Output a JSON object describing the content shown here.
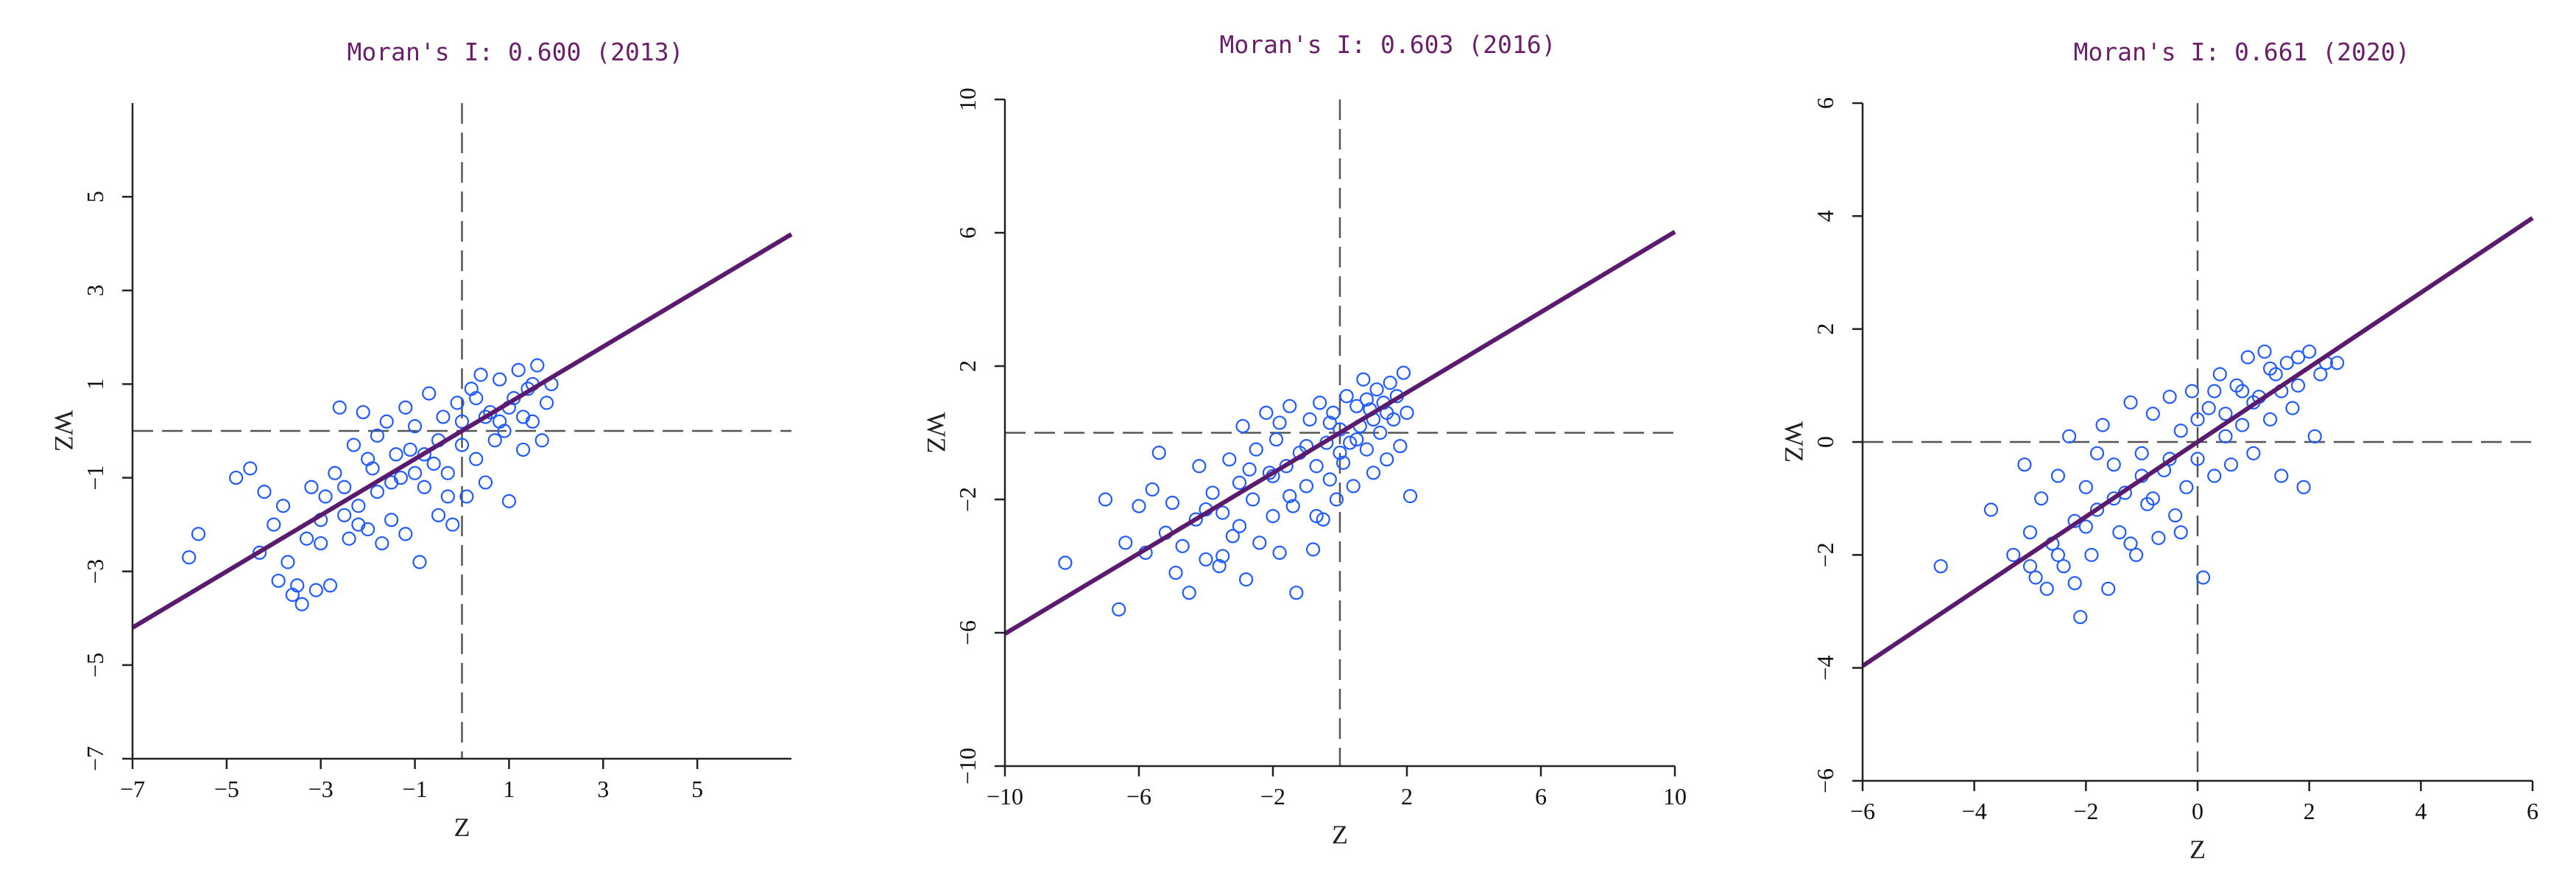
{
  "chart_data": [
    {
      "type": "scatter",
      "title": "Moran's I: 0.600 (2013)",
      "morans_i": 0.6,
      "year": 2013,
      "xlabel": "Z",
      "ylabel": "WZ",
      "xlim": [
        -7,
        7
      ],
      "ylim": [
        -7,
        7
      ],
      "xticks": [
        -7,
        -5,
        -3,
        -1,
        1,
        3,
        5
      ],
      "yticks": [
        -7,
        -5,
        -3,
        -1,
        1,
        3,
        5
      ],
      "fit": {
        "slope": 0.6,
        "intercept": 0
      },
      "reference_lines": {
        "x": 0,
        "y": 0
      },
      "series": [
        {
          "marker": "open-circle",
          "color": "#1f5bff",
          "points": [
            [
              -5.8,
              -2.7
            ],
            [
              -5.6,
              -2.2
            ],
            [
              -4.8,
              -1.0
            ],
            [
              -4.5,
              -0.8
            ],
            [
              -4.3,
              -2.6
            ],
            [
              -4.2,
              -1.3
            ],
            [
              -4.0,
              -2.0
            ],
            [
              -3.9,
              -3.2
            ],
            [
              -3.8,
              -1.6
            ],
            [
              -3.7,
              -2.8
            ],
            [
              -3.6,
              -3.5
            ],
            [
              -3.5,
              -3.3
            ],
            [
              -3.4,
              -3.7
            ],
            [
              -3.3,
              -2.3
            ],
            [
              -3.2,
              -1.2
            ],
            [
              -3.1,
              -3.4
            ],
            [
              -3.0,
              -2.4
            ],
            [
              -2.9,
              -1.4
            ],
            [
              -2.8,
              -3.3
            ],
            [
              -2.7,
              -0.9
            ],
            [
              -2.6,
              0.5
            ],
            [
              -2.5,
              -1.8
            ],
            [
              -2.4,
              -2.3
            ],
            [
              -2.3,
              -0.3
            ],
            [
              -2.2,
              -1.6
            ],
            [
              -2.1,
              0.4
            ],
            [
              -2.0,
              -2.1
            ],
            [
              -1.9,
              -0.8
            ],
            [
              -1.8,
              -1.3
            ],
            [
              -1.7,
              -2.4
            ],
            [
              -1.6,
              0.2
            ],
            [
              -1.5,
              -1.9
            ],
            [
              -1.4,
              -0.5
            ],
            [
              -1.3,
              -1.0
            ],
            [
              -1.2,
              -2.2
            ],
            [
              -1.1,
              -0.4
            ],
            [
              -1.0,
              0.1
            ],
            [
              -0.9,
              -2.8
            ],
            [
              -0.8,
              -1.2
            ],
            [
              -0.7,
              0.8
            ],
            [
              -0.6,
              -0.7
            ],
            [
              -0.5,
              -1.8
            ],
            [
              -0.4,
              0.3
            ],
            [
              -0.3,
              -0.9
            ],
            [
              -0.2,
              -2.0
            ],
            [
              -0.1,
              0.6
            ],
            [
              0.0,
              -0.3
            ],
            [
              0.1,
              -1.4
            ],
            [
              0.2,
              0.9
            ],
            [
              0.3,
              -0.6
            ],
            [
              0.4,
              1.2
            ],
            [
              0.5,
              -1.1
            ],
            [
              0.6,
              0.4
            ],
            [
              0.7,
              -0.2
            ],
            [
              0.8,
              1.1
            ],
            [
              0.9,
              0.0
            ],
            [
              1.0,
              -1.5
            ],
            [
              1.1,
              0.7
            ],
            [
              1.2,
              1.3
            ],
            [
              1.3,
              -0.4
            ],
            [
              1.4,
              0.9
            ],
            [
              1.5,
              0.2
            ],
            [
              1.6,
              1.4
            ],
            [
              1.7,
              -0.2
            ],
            [
              1.8,
              0.6
            ],
            [
              1.9,
              1.0
            ],
            [
              -2.0,
              -0.6
            ],
            [
              -1.5,
              -1.1
            ],
            [
              -1.0,
              -0.9
            ],
            [
              -0.5,
              -0.2
            ],
            [
              0.5,
              0.3
            ],
            [
              1.0,
              0.5
            ],
            [
              -2.5,
              -1.2
            ],
            [
              -3.0,
              -1.9
            ],
            [
              0.0,
              0.2
            ],
            [
              -0.8,
              -0.5
            ],
            [
              0.8,
              0.2
            ],
            [
              1.5,
              1.0
            ],
            [
              -1.8,
              -0.1
            ],
            [
              -2.2,
              -2.0
            ],
            [
              -1.2,
              0.5
            ],
            [
              0.3,
              0.7
            ],
            [
              1.3,
              0.3
            ],
            [
              -0.3,
              -1.4
            ]
          ]
        }
      ]
    },
    {
      "type": "scatter",
      "title": "Moran's I: 0.603 (2016)",
      "morans_i": 0.603,
      "year": 2016,
      "xlabel": "Z",
      "ylabel": "WZ",
      "xlim": [
        -10,
        10
      ],
      "ylim": [
        -10,
        10
      ],
      "xticks": [
        -10,
        -6,
        -2,
        2,
        6,
        10
      ],
      "yticks": [
        -10,
        -6,
        -2,
        2,
        6,
        10
      ],
      "fit": {
        "slope": 0.603,
        "intercept": 0
      },
      "reference_lines": {
        "x": 0,
        "y": 0
      },
      "series": [
        {
          "marker": "open-circle",
          "color": "#1f5bff",
          "points": [
            [
              -8.2,
              -3.9
            ],
            [
              -7.0,
              -2.0
            ],
            [
              -6.6,
              -5.3
            ],
            [
              -6.4,
              -3.3
            ],
            [
              -6.0,
              -2.2
            ],
            [
              -5.8,
              -3.6
            ],
            [
              -5.6,
              -1.7
            ],
            [
              -5.4,
              -0.6
            ],
            [
              -5.2,
              -3.0
            ],
            [
              -5.0,
              -2.1
            ],
            [
              -4.9,
              -4.2
            ],
            [
              -4.7,
              -3.4
            ],
            [
              -4.5,
              -4.8
            ],
            [
              -4.3,
              -2.6
            ],
            [
              -4.2,
              -1.0
            ],
            [
              -4.0,
              -3.8
            ],
            [
              -3.8,
              -1.8
            ],
            [
              -3.6,
              -4.0
            ],
            [
              -3.5,
              -2.4
            ],
            [
              -3.3,
              -0.8
            ],
            [
              -3.2,
              -3.1
            ],
            [
              -3.0,
              -1.5
            ],
            [
              -2.9,
              0.2
            ],
            [
              -2.8,
              -4.4
            ],
            [
              -2.6,
              -2.0
            ],
            [
              -2.5,
              -0.5
            ],
            [
              -2.4,
              -3.3
            ],
            [
              -2.2,
              0.6
            ],
            [
              -2.1,
              -1.2
            ],
            [
              -2.0,
              -2.5
            ],
            [
              -1.9,
              -0.2
            ],
            [
              -1.8,
              -3.6
            ],
            [
              -1.6,
              -1.0
            ],
            [
              -1.5,
              0.8
            ],
            [
              -1.4,
              -2.2
            ],
            [
              -1.3,
              -4.8
            ],
            [
              -1.2,
              -0.6
            ],
            [
              -1.0,
              -1.6
            ],
            [
              -0.9,
              0.4
            ],
            [
              -0.8,
              -3.5
            ],
            [
              -0.7,
              -1.0
            ],
            [
              -0.6,
              0.9
            ],
            [
              -0.5,
              -2.6
            ],
            [
              -0.4,
              -0.3
            ],
            [
              -0.3,
              -1.4
            ],
            [
              -0.2,
              0.6
            ],
            [
              -0.1,
              -2.0
            ],
            [
              0.0,
              0.1
            ],
            [
              0.1,
              -0.9
            ],
            [
              0.2,
              1.1
            ],
            [
              0.3,
              -0.3
            ],
            [
              0.4,
              -1.6
            ],
            [
              0.5,
              0.8
            ],
            [
              0.6,
              0.2
            ],
            [
              0.7,
              1.6
            ],
            [
              0.8,
              -0.5
            ],
            [
              0.9,
              0.7
            ],
            [
              1.0,
              -1.2
            ],
            [
              1.1,
              1.3
            ],
            [
              1.2,
              0.0
            ],
            [
              1.3,
              0.9
            ],
            [
              1.4,
              -0.8
            ],
            [
              1.5,
              1.5
            ],
            [
              1.6,
              0.4
            ],
            [
              1.7,
              1.1
            ],
            [
              1.8,
              -0.4
            ],
            [
              1.9,
              1.8
            ],
            [
              2.0,
              0.6
            ],
            [
              2.1,
              -1.9
            ],
            [
              -3.0,
              -2.8
            ],
            [
              -2.0,
              -1.3
            ],
            [
              -1.0,
              -0.4
            ],
            [
              0.0,
              -0.6
            ],
            [
              1.0,
              0.4
            ],
            [
              -4.0,
              -2.3
            ],
            [
              -1.5,
              -1.9
            ],
            [
              0.5,
              -0.2
            ],
            [
              1.4,
              0.6
            ],
            [
              -2.7,
              -1.1
            ],
            [
              -0.3,
              0.3
            ],
            [
              0.8,
              1.0
            ],
            [
              -3.5,
              -3.7
            ],
            [
              -1.8,
              0.3
            ],
            [
              -0.7,
              -2.5
            ]
          ]
        }
      ]
    },
    {
      "type": "scatter",
      "title": "Moran's I: 0.661 (2020)",
      "morans_i": 0.661,
      "year": 2020,
      "xlabel": "Z",
      "ylabel": "WZ",
      "xlim": [
        -6,
        6
      ],
      "ylim": [
        -6,
        6
      ],
      "xticks": [
        -6,
        -4,
        -2,
        0,
        2,
        4,
        6
      ],
      "yticks": [
        -6,
        -4,
        -2,
        0,
        2,
        4,
        6
      ],
      "fit": {
        "slope": 0.661,
        "intercept": 0
      },
      "reference_lines": {
        "x": 0,
        "y": 0
      },
      "series": [
        {
          "marker": "open-circle",
          "color": "#1f5bff",
          "points": [
            [
              -4.6,
              -2.2
            ],
            [
              -3.7,
              -1.2
            ],
            [
              -3.3,
              -2.0
            ],
            [
              -3.1,
              -0.4
            ],
            [
              -3.0,
              -1.6
            ],
            [
              -2.9,
              -2.4
            ],
            [
              -2.8,
              -1.0
            ],
            [
              -2.7,
              -2.6
            ],
            [
              -2.6,
              -1.8
            ],
            [
              -2.5,
              -0.6
            ],
            [
              -2.4,
              -2.2
            ],
            [
              -2.3,
              0.1
            ],
            [
              -2.2,
              -1.4
            ],
            [
              -2.1,
              -3.1
            ],
            [
              -2.0,
              -0.8
            ],
            [
              -1.9,
              -2.0
            ],
            [
              -1.8,
              -1.2
            ],
            [
              -1.7,
              0.3
            ],
            [
              -1.6,
              -2.6
            ],
            [
              -1.5,
              -0.4
            ],
            [
              -1.4,
              -1.6
            ],
            [
              -1.3,
              -0.9
            ],
            [
              -1.2,
              0.7
            ],
            [
              -1.1,
              -2.0
            ],
            [
              -1.0,
              -0.2
            ],
            [
              -0.9,
              -1.1
            ],
            [
              -0.8,
              0.5
            ],
            [
              -0.7,
              -1.7
            ],
            [
              -0.6,
              -0.5
            ],
            [
              -0.5,
              0.8
            ],
            [
              -0.4,
              -1.3
            ],
            [
              -0.3,
              0.2
            ],
            [
              -0.2,
              -0.8
            ],
            [
              -0.1,
              0.9
            ],
            [
              0.0,
              -0.3
            ],
            [
              0.1,
              -2.4
            ],
            [
              0.2,
              0.6
            ],
            [
              0.3,
              -0.6
            ],
            [
              0.4,
              1.2
            ],
            [
              0.5,
              0.1
            ],
            [
              0.6,
              -0.4
            ],
            [
              0.7,
              1.0
            ],
            [
              0.8,
              0.3
            ],
            [
              0.9,
              1.5
            ],
            [
              1.0,
              -0.2
            ],
            [
              1.1,
              0.8
            ],
            [
              1.2,
              1.6
            ],
            [
              1.3,
              0.4
            ],
            [
              1.4,
              1.2
            ],
            [
              1.5,
              -0.6
            ],
            [
              1.6,
              1.4
            ],
            [
              1.7,
              0.6
            ],
            [
              1.8,
              1.0
            ],
            [
              1.9,
              -0.8
            ],
            [
              2.0,
              1.6
            ],
            [
              2.1,
              0.1
            ],
            [
              2.2,
              1.2
            ],
            [
              2.3,
              1.4
            ],
            [
              2.5,
              1.4
            ],
            [
              -2.0,
              -1.5
            ],
            [
              -1.5,
              -1.0
            ],
            [
              -1.0,
              -0.6
            ],
            [
              -0.5,
              -0.3
            ],
            [
              0.5,
              0.5
            ],
            [
              1.0,
              0.7
            ],
            [
              1.5,
              0.9
            ],
            [
              -2.5,
              -2.0
            ],
            [
              -3.0,
              -2.2
            ],
            [
              0.0,
              0.4
            ],
            [
              -0.8,
              -1.0
            ],
            [
              0.8,
              0.9
            ],
            [
              1.3,
              1.3
            ],
            [
              -1.8,
              -0.2
            ],
            [
              -2.2,
              -2.5
            ],
            [
              -1.2,
              -1.8
            ],
            [
              0.3,
              0.9
            ],
            [
              1.8,
              1.5
            ],
            [
              -0.3,
              -1.6
            ]
          ]
        }
      ]
    }
  ]
}
